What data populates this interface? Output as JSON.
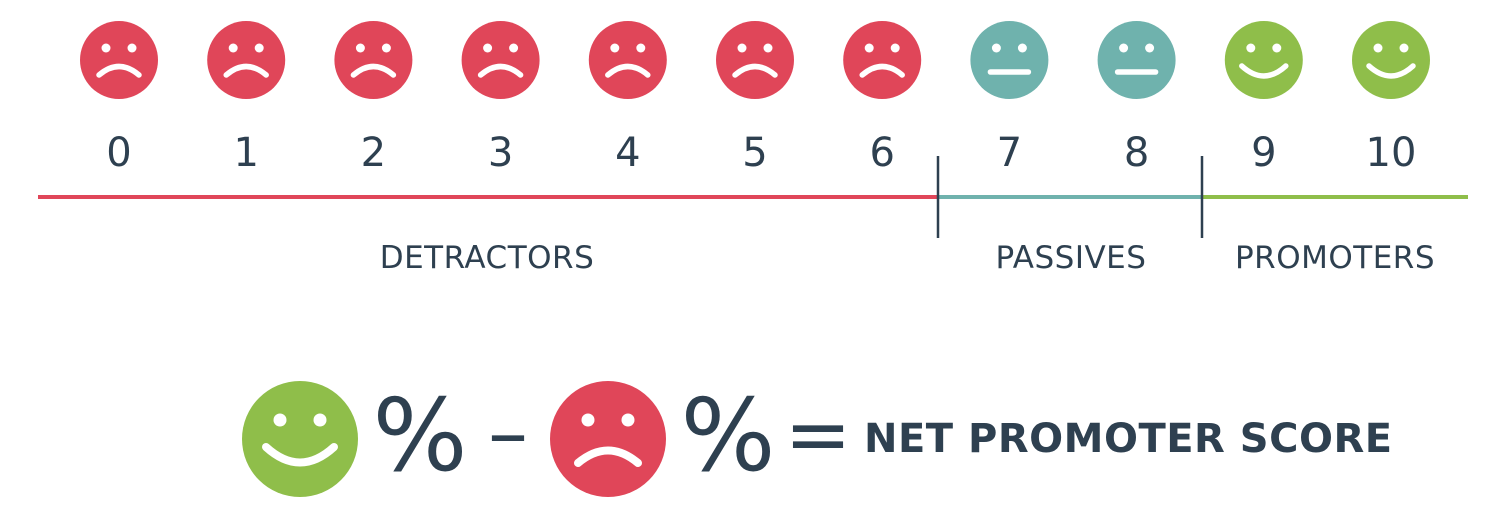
{
  "colors": {
    "detractor": "#e04659",
    "passive": "#6fb2ad",
    "promoter": "#8fbe4a",
    "ink": "#2e4050"
  },
  "scale": [
    {
      "score": "0",
      "group": "detractor",
      "icon": "sad-face-icon"
    },
    {
      "score": "1",
      "group": "detractor",
      "icon": "sad-face-icon"
    },
    {
      "score": "2",
      "group": "detractor",
      "icon": "sad-face-icon"
    },
    {
      "score": "3",
      "group": "detractor",
      "icon": "sad-face-icon"
    },
    {
      "score": "4",
      "group": "detractor",
      "icon": "sad-face-icon"
    },
    {
      "score": "5",
      "group": "detractor",
      "icon": "sad-face-icon"
    },
    {
      "score": "6",
      "group": "detractor",
      "icon": "sad-face-icon"
    },
    {
      "score": "7",
      "group": "passive",
      "icon": "neutral-face-icon"
    },
    {
      "score": "8",
      "group": "passive",
      "icon": "neutral-face-icon"
    },
    {
      "score": "9",
      "group": "promoter",
      "icon": "happy-face-icon"
    },
    {
      "score": "10",
      "group": "promoter",
      "icon": "happy-face-icon"
    }
  ],
  "segments": {
    "detractors": "DETRACTORS",
    "passives": "PASSIVES",
    "promoters": "PROMOTERS"
  },
  "formula": {
    "percent": "%",
    "minus": "–",
    "equals": "=",
    "result": "NET PROMOTER SCORE"
  }
}
